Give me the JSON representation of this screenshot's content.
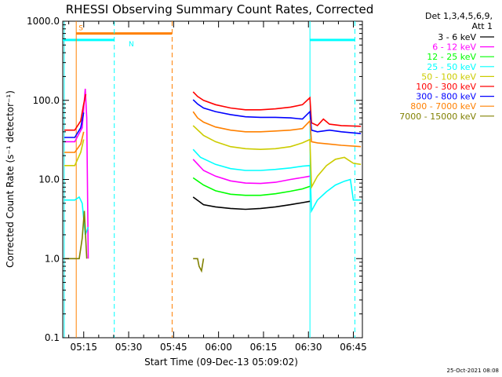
{
  "chart_data": {
    "type": "line",
    "title": "RHESSI Observing Summary Count Rates, Corrected",
    "xlabel": "Start Time (09-Dec-13 05:09:02)",
    "ylabel": "Corrected Count Rate (s⁻¹ detector⁻¹)",
    "xlim_minutes": [
      -1,
      99
    ],
    "ylim": [
      0.1,
      1000
    ],
    "yscale": "log",
    "x_ticks": [
      {
        "t": 6,
        "label": "05:15"
      },
      {
        "t": 21,
        "label": "05:30"
      },
      {
        "t": 36,
        "label": "05:45"
      },
      {
        "t": 51,
        "label": "06:00"
      },
      {
        "t": 66,
        "label": "06:15"
      },
      {
        "t": 81,
        "label": "06:30"
      },
      {
        "t": 96,
        "label": "06:45"
      }
    ],
    "y_ticks": [
      {
        "v": 0.1,
        "label": "0.1"
      },
      {
        "v": 1,
        "label": "1.0"
      },
      {
        "v": 10,
        "label": "10.0"
      },
      {
        "v": 100,
        "label": "100.0"
      },
      {
        "v": 1000,
        "label": "1000.0"
      }
    ],
    "legend_header": [
      "Det 1,3,4,5,6,9,",
      "Att 1"
    ],
    "series": [
      {
        "name": "3 - 6 keV",
        "color": "#000000",
        "points": [
          [
            42.5,
            6
          ],
          [
            46,
            4.8
          ],
          [
            50,
            4.5
          ],
          [
            55,
            4.3
          ],
          [
            60,
            4.2
          ],
          [
            65,
            4.3
          ],
          [
            70,
            4.5
          ],
          [
            75,
            4.8
          ],
          [
            79,
            5.1
          ],
          [
            81.5,
            5.3
          ]
        ]
      },
      {
        "name": "6 - 12 keV",
        "color": "#ff00ff",
        "points": [
          [
            -0.5,
            30
          ],
          [
            3,
            30
          ],
          [
            5.5,
            45
          ],
          [
            6.5,
            140
          ],
          [
            7,
            60
          ],
          [
            7.5,
            1
          ],
          [
            42.5,
            18
          ],
          [
            46,
            13
          ],
          [
            50,
            11
          ],
          [
            55,
            9.6
          ],
          [
            60,
            9
          ],
          [
            65,
            8.9
          ],
          [
            70,
            9.2
          ],
          [
            75,
            10
          ],
          [
            79,
            10.6
          ],
          [
            81.5,
            11
          ]
        ]
      },
      {
        "name": "12 - 25 keV",
        "color": "#00ff00",
        "points": [
          [
            42.5,
            10.5
          ],
          [
            46,
            8.5
          ],
          [
            50,
            7.2
          ],
          [
            55,
            6.5
          ],
          [
            60,
            6.3
          ],
          [
            65,
            6.3
          ],
          [
            70,
            6.6
          ],
          [
            75,
            7.1
          ],
          [
            79,
            7.6
          ],
          [
            81.5,
            8.2
          ]
        ]
      },
      {
        "name": "25 - 50 keV",
        "color": "#00ffff",
        "points": [
          [
            -0.5,
            5.5
          ],
          [
            3,
            5.5
          ],
          [
            4.5,
            6
          ],
          [
            5.5,
            5
          ],
          [
            6.5,
            2
          ],
          [
            7.5,
            2.5
          ],
          [
            42.5,
            24
          ],
          [
            45,
            19
          ],
          [
            50,
            15.5
          ],
          [
            55,
            13.7
          ],
          [
            60,
            13
          ],
          [
            65,
            13
          ],
          [
            70,
            13.4
          ],
          [
            75,
            14
          ],
          [
            79,
            14.7
          ],
          [
            81.5,
            15
          ],
          [
            82,
            4
          ],
          [
            84,
            5.5
          ],
          [
            87,
            7
          ],
          [
            90,
            8.5
          ],
          [
            93,
            9.5
          ],
          [
            95,
            10
          ],
          [
            96,
            5.5
          ],
          [
            98.5,
            5.5
          ]
        ]
      },
      {
        "name": "50 - 100 keV",
        "color": "#cccc00",
        "points": [
          [
            -0.5,
            15
          ],
          [
            3,
            15
          ],
          [
            5,
            22
          ],
          [
            6,
            32
          ],
          [
            42.5,
            48
          ],
          [
            46,
            36
          ],
          [
            50,
            30
          ],
          [
            55,
            26
          ],
          [
            60,
            24.5
          ],
          [
            65,
            24
          ],
          [
            70,
            24.5
          ],
          [
            75,
            26
          ],
          [
            79,
            29
          ],
          [
            81.5,
            32
          ],
          [
            82,
            8
          ],
          [
            84,
            11
          ],
          [
            87,
            15
          ],
          [
            90,
            18
          ],
          [
            93,
            19
          ],
          [
            96,
            16
          ],
          [
            98.5,
            15.5
          ]
        ]
      },
      {
        "name": "100 - 300 keV",
        "color": "#ff0000",
        "points": [
          [
            -0.5,
            42
          ],
          [
            3,
            42
          ],
          [
            5,
            55
          ],
          [
            6,
            90
          ],
          [
            6.7,
            120
          ],
          [
            42.5,
            128
          ],
          [
            44,
            112
          ],
          [
            46,
            100
          ],
          [
            50,
            88
          ],
          [
            55,
            80
          ],
          [
            60,
            76
          ],
          [
            65,
            76
          ],
          [
            70,
            78
          ],
          [
            75,
            82
          ],
          [
            79,
            88
          ],
          [
            81.5,
            108
          ],
          [
            82,
            52
          ],
          [
            84,
            48
          ],
          [
            86,
            58
          ],
          [
            88,
            50
          ],
          [
            92,
            48
          ],
          [
            98.5,
            47
          ]
        ]
      },
      {
        "name": "300 - 800 keV",
        "color": "#0000ff",
        "points": [
          [
            -0.5,
            34
          ],
          [
            3,
            34
          ],
          [
            5,
            45
          ],
          [
            6,
            70
          ],
          [
            42.5,
            102
          ],
          [
            44,
            90
          ],
          [
            46,
            80
          ],
          [
            50,
            72
          ],
          [
            55,
            66
          ],
          [
            60,
            62
          ],
          [
            65,
            61
          ],
          [
            70,
            61
          ],
          [
            75,
            60
          ],
          [
            79,
            58
          ],
          [
            81.5,
            72
          ],
          [
            82,
            42
          ],
          [
            84,
            40
          ],
          [
            88,
            42
          ],
          [
            92,
            40
          ],
          [
            98.5,
            38
          ]
        ]
      },
      {
        "name": "800 - 7000 keV",
        "color": "#ff8000",
        "points": [
          [
            -0.5,
            22
          ],
          [
            3,
            22
          ],
          [
            5,
            28
          ],
          [
            6,
            40
          ],
          [
            42.5,
            72
          ],
          [
            44,
            60
          ],
          [
            46,
            53
          ],
          [
            50,
            46
          ],
          [
            55,
            42
          ],
          [
            60,
            40
          ],
          [
            65,
            40
          ],
          [
            70,
            41
          ],
          [
            75,
            42
          ],
          [
            79,
            44
          ],
          [
            81.5,
            55
          ],
          [
            82,
            30
          ],
          [
            84,
            29
          ],
          [
            88,
            28
          ],
          [
            92,
            27
          ],
          [
            98.5,
            26
          ]
        ]
      },
      {
        "name": "7000 - 15000 keV",
        "color": "#808000",
        "points": [
          [
            -0.5,
            1
          ],
          [
            4.5,
            1
          ],
          [
            5.5,
            1.8
          ],
          [
            6.2,
            4
          ],
          [
            7,
            1
          ],
          [
            42.5,
            1
          ],
          [
            44,
            1
          ],
          [
            44.5,
            0.8
          ],
          [
            45.3,
            0.7
          ],
          [
            46,
            1
          ]
        ]
      }
    ],
    "bars": [
      {
        "label": "S",
        "color": "#ff8000",
        "t_start": 3.5,
        "t_end": 35.5,
        "level": 700
      },
      {
        "label": "N",
        "color": "#00ffff",
        "t_start": -1,
        "t_end": 16.2,
        "level": 580
      },
      {
        "label": "",
        "color": "#00ffff",
        "t_start": 81.5,
        "t_end": 96.5,
        "level": 580
      }
    ],
    "vertical_lines": [
      {
        "t": -0.5,
        "color": "#00ffff",
        "style": "solid"
      },
      {
        "t": 3.5,
        "color": "#ff8000",
        "style": "solid"
      },
      {
        "t": 16.2,
        "color": "#00ffff",
        "style": "dashed"
      },
      {
        "t": 35.5,
        "color": "#ff8000",
        "style": "dashed"
      },
      {
        "t": 81.5,
        "color": "#00ffff",
        "style": "solid"
      },
      {
        "t": 96.5,
        "color": "#00ffff",
        "style": "dashed"
      }
    ]
  },
  "footer_stamp": "25-Oct-2021 08:08"
}
